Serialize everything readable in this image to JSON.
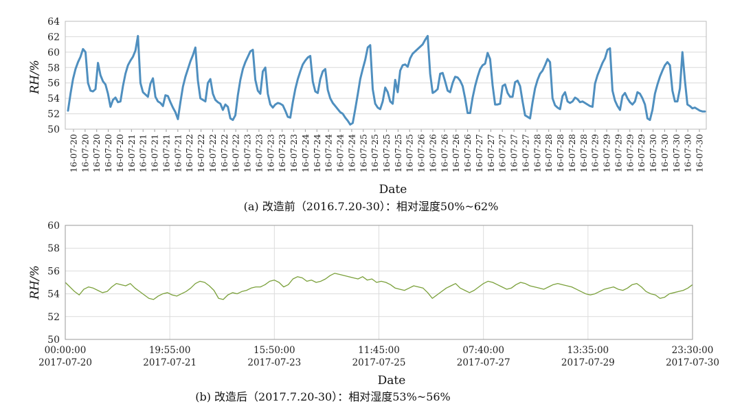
{
  "chart_data": [
    {
      "type": "line",
      "caption": "(a) 改造前（2016.7.20-30）：相对湿度50%~62%",
      "ylabel": "RH/%",
      "xlabel": "Date",
      "ylim": [
        50,
        64
      ],
      "yticks": [
        50,
        52,
        54,
        56,
        58,
        60,
        62,
        64
      ],
      "grid": "horizontal",
      "color": "#4f8fbf",
      "x_tick_labels": [
        "16-07-20",
        "16-07-20",
        "16-07-20",
        "16-07-20",
        "16-07-20",
        "16-07-21",
        "16-07-21",
        "16-07-21",
        "16-07-21",
        "16-07-21",
        "16-07-22",
        "16-07-22",
        "16-07-22",
        "16-07-22",
        "16-07-22",
        "16-07-23",
        "16-07-23",
        "16-07-23",
        "16-07-23",
        "16-07-23",
        "16-07-24",
        "16-07-24",
        "16-07-24",
        "16-07-24",
        "16-07-24",
        "16-07-25",
        "16-07-25",
        "16-07-25",
        "16-07-25",
        "16-07-25",
        "16-07-26",
        "16-07-26",
        "16-07-26",
        "16-07-26",
        "16-07-26",
        "16-07-27",
        "16-07-27",
        "16-07-27",
        "16-07-27",
        "16-07-27",
        "16-07-28",
        "16-07-28",
        "16-07-28",
        "16-07-28",
        "16-07-28",
        "16-07-29",
        "16-07-29",
        "16-07-29",
        "16-07-29",
        "16-07-29",
        "16-07-30",
        "16-07-30",
        "16-07-30",
        "16-07-30",
        "16-07-30"
      ],
      "values": [
        52.4,
        54.6,
        56.5,
        57.8,
        58.7,
        59.4,
        60.4,
        60.0,
        56.0,
        55.0,
        54.9,
        55.2,
        58.6,
        57.0,
        56.2,
        55.8,
        54.6,
        52.9,
        53.8,
        54.1,
        53.5,
        53.6,
        55.6,
        57.2,
        58.3,
        58.9,
        59.4,
        60.2,
        62.1,
        56.0,
        54.8,
        54.5,
        54.2,
        55.9,
        56.6,
        54.2,
        53.6,
        53.4,
        53.0,
        54.4,
        54.3,
        53.5,
        52.8,
        52.2,
        51.3,
        53.5,
        55.5,
        56.8,
        57.8,
        58.8,
        59.6,
        60.6,
        56.3,
        54.0,
        53.8,
        53.6,
        56.0,
        56.5,
        54.6,
        53.8,
        53.5,
        53.3,
        52.5,
        53.2,
        52.9,
        51.4,
        51.2,
        51.8,
        54.4,
        56.4,
        57.8,
        58.7,
        59.4,
        60.1,
        60.3,
        56.4,
        55.0,
        54.6,
        57.5,
        58.0,
        54.6,
        53.2,
        52.8,
        53.2,
        53.4,
        53.3,
        53.1,
        52.4,
        51.6,
        51.5,
        53.5,
        55.2,
        56.5,
        57.5,
        58.4,
        58.9,
        59.3,
        59.5,
        56.2,
        54.9,
        54.7,
        56.5,
        57.5,
        57.8,
        55.1,
        54.0,
        53.4,
        53.0,
        52.6,
        52.2,
        52.0,
        51.5,
        51.1,
        50.6,
        50.8,
        52.6,
        54.5,
        56.5,
        57.8,
        59.0,
        60.6,
        60.9,
        55.2,
        53.3,
        52.8,
        52.6,
        53.6,
        55.4,
        54.8,
        53.6,
        53.3,
        56.4,
        54.8,
        57.6,
        58.3,
        58.4,
        58.1,
        59.2,
        59.8,
        60.1,
        60.4,
        60.7,
        61.0,
        61.6,
        62.1,
        57.2,
        54.7,
        54.9,
        55.2,
        57.2,
        57.3,
        56.2,
        55.0,
        54.8,
        56.0,
        56.8,
        56.7,
        56.3,
        55.6,
        54.0,
        52.1,
        52.1,
        54.1,
        55.6,
        56.8,
        57.8,
        58.3,
        58.5,
        59.9,
        59.1,
        55.7,
        53.2,
        53.2,
        53.3,
        55.6,
        55.8,
        54.7,
        54.2,
        54.2,
        56.1,
        56.3,
        55.6,
        53.6,
        51.8,
        51.6,
        51.4,
        53.5,
        55.3,
        56.4,
        57.2,
        57.6,
        58.3,
        59.1,
        58.7,
        54.0,
        53.1,
        52.8,
        52.6,
        54.3,
        54.8,
        53.6,
        53.4,
        53.6,
        54.1,
        53.9,
        53.5,
        53.6,
        53.4,
        53.2,
        53.0,
        52.9,
        55.9,
        57.0,
        57.8,
        58.6,
        59.2,
        60.3,
        60.5,
        55.0,
        53.7,
        53.0,
        52.5,
        54.3,
        54.7,
        54.0,
        53.5,
        53.2,
        53.6,
        54.8,
        54.6,
        54.0,
        53.2,
        51.4,
        51.2,
        52.5,
        54.6,
        55.8,
        56.8,
        57.6,
        58.3,
        58.7,
        58.3,
        55.0,
        53.6,
        53.6,
        55.3,
        60.0,
        56.3,
        53.2,
        53.0,
        52.7,
        52.8,
        52.6,
        52.4,
        52.3,
        52.3
      ]
    },
    {
      "type": "line",
      "caption": "(b) 改造后（2017.7.20-30）：相对湿度53%~56%",
      "ylabel": "RH/%",
      "xlabel": "Date",
      "ylim": [
        50,
        60
      ],
      "yticks": [
        50,
        52,
        54,
        56,
        58,
        60
      ],
      "grid": "both",
      "color": "#7aa03a",
      "x_tick_labels": [
        {
          "time": "00:00:00",
          "date": "2017-07-20"
        },
        {
          "time": "19:55:00",
          "date": "2017-07-21"
        },
        {
          "time": "15:50:00",
          "date": "2017-07-23"
        },
        {
          "time": "11:45:00",
          "date": "2017-07-25"
        },
        {
          "time": "07:40:00",
          "date": "2017-07-27"
        },
        {
          "time": "13:35:00",
          "date": "2017-07-29"
        },
        {
          "time": "23:30:00",
          "date": "2017-07-30"
        }
      ],
      "values": [
        55.0,
        54.6,
        54.2,
        53.9,
        54.4,
        54.6,
        54.5,
        54.3,
        54.1,
        54.2,
        54.6,
        54.9,
        54.8,
        54.7,
        54.9,
        54.5,
        54.2,
        53.9,
        53.6,
        53.5,
        53.8,
        54.0,
        54.1,
        53.9,
        53.8,
        54.0,
        54.2,
        54.5,
        54.9,
        55.1,
        55.0,
        54.7,
        54.3,
        53.6,
        53.5,
        53.9,
        54.1,
        54.0,
        54.2,
        54.3,
        54.5,
        54.6,
        54.6,
        54.8,
        55.1,
        55.2,
        55.0,
        54.6,
        54.8,
        55.3,
        55.5,
        55.4,
        55.1,
        55.2,
        55.0,
        55.1,
        55.3,
        55.6,
        55.8,
        55.7,
        55.6,
        55.5,
        55.4,
        55.3,
        55.5,
        55.2,
        55.3,
        55.0,
        55.1,
        55.0,
        54.8,
        54.5,
        54.4,
        54.3,
        54.5,
        54.7,
        54.6,
        54.5,
        54.1,
        53.6,
        53.9,
        54.2,
        54.5,
        54.7,
        54.9,
        54.5,
        54.3,
        54.1,
        54.3,
        54.6,
        54.9,
        55.1,
        55.0,
        54.8,
        54.6,
        54.4,
        54.5,
        54.8,
        55.0,
        54.9,
        54.7,
        54.6,
        54.5,
        54.4,
        54.6,
        54.8,
        54.9,
        54.8,
        54.7,
        54.6,
        54.4,
        54.2,
        54.0,
        53.9,
        54.0,
        54.2,
        54.4,
        54.5,
        54.6,
        54.4,
        54.3,
        54.5,
        54.8,
        54.9,
        54.6,
        54.2,
        54.0,
        53.9,
        53.6,
        53.7,
        54.0,
        54.1,
        54.2,
        54.3,
        54.5,
        54.8
      ]
    }
  ]
}
